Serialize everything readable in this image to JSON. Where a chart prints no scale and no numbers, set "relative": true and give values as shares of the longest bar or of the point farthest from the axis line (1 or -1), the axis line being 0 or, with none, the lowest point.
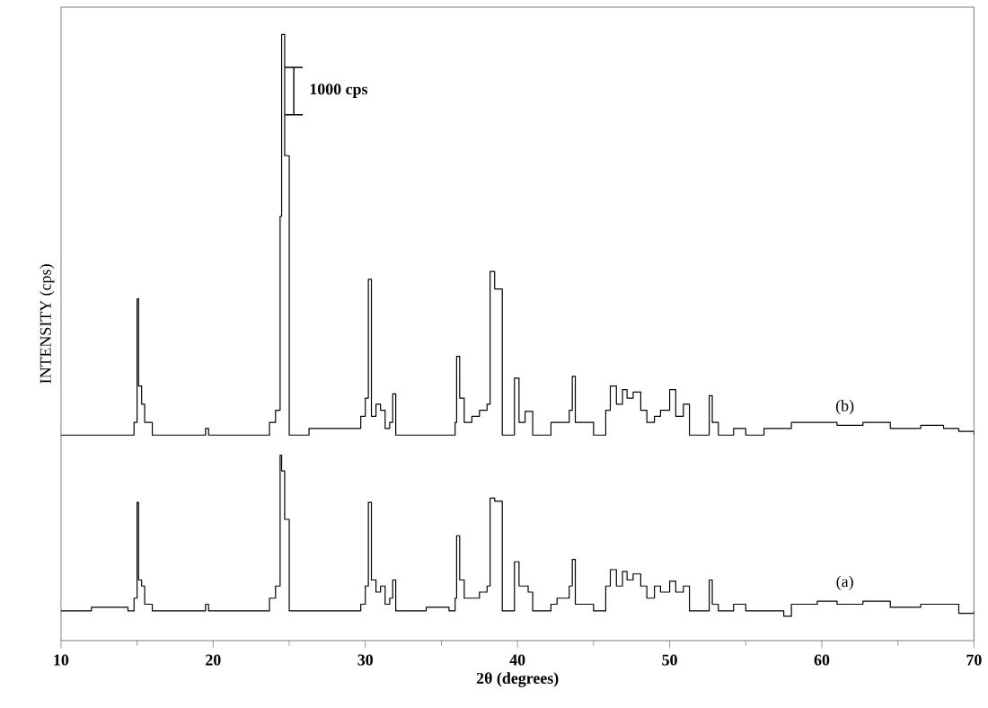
{
  "chart_data": {
    "type": "step",
    "relative": true,
    "xlabel": "2θ (degrees)",
    "ylabel": "INTENSITY (cps)",
    "annotations": [
      "1000 cps"
    ],
    "xlim": [
      10,
      70
    ],
    "xticks": [
      10,
      20,
      30,
      40,
      50,
      60,
      70
    ],
    "series": [
      {
        "name": "(a)",
        "color": "#000000",
        "x": [
          10,
          12,
          14.4,
          14.8,
          15.0,
          15.1,
          15.3,
          15.5,
          16,
          19.5,
          19.7,
          23.4,
          23.7,
          24.1,
          24.4,
          24.5,
          24.7,
          25.0,
          28.8,
          29.7,
          30.0,
          30.2,
          30.4,
          30.7,
          31.0,
          31.3,
          31.6,
          31.8,
          32.0,
          34.0,
          35.5,
          35.9,
          36.0,
          36.2,
          36.5,
          37.0,
          37.5,
          38.0,
          38.2,
          38.5,
          39.0,
          39.8,
          40.1,
          40.7,
          41.0,
          42.2,
          42.6,
          43.4,
          43.6,
          43.8,
          45.0,
          45.8,
          46.1,
          46.5,
          46.9,
          47.2,
          47.6,
          48.1,
          48.5,
          49.0,
          49.4,
          50.0,
          50.4,
          50.9,
          51.3,
          52.6,
          52.8,
          53.2,
          54.2,
          55,
          57.5,
          58.0,
          59.7,
          61.0,
          62.7,
          64.5,
          66.5,
          68.0,
          69.0,
          70
        ],
        "values": [
          0.049,
          0.055,
          0.049,
          0.07,
          0.228,
          0.1,
          0.09,
          0.06,
          0.049,
          0.06,
          0.049,
          0.049,
          0.07,
          0.09,
          0.306,
          0.28,
          0.2,
          0.049,
          0.049,
          0.06,
          0.09,
          0.228,
          0.1,
          0.08,
          0.09,
          0.06,
          0.07,
          0.1,
          0.049,
          0.055,
          0.049,
          0.07,
          0.173,
          0.1,
          0.07,
          0.07,
          0.08,
          0.09,
          0.235,
          0.23,
          0.049,
          0.13,
          0.09,
          0.08,
          0.049,
          0.06,
          0.07,
          0.09,
          0.134,
          0.06,
          0.049,
          0.09,
          0.117,
          0.09,
          0.114,
          0.1,
          0.11,
          0.09,
          0.07,
          0.09,
          0.08,
          0.098,
          0.08,
          0.09,
          0.049,
          0.1,
          0.06,
          0.049,
          0.06,
          0.049,
          0.04,
          0.06,
          0.065,
          0.06,
          0.065,
          0.055,
          0.06,
          0.06,
          0.045,
          0.049
        ]
      },
      {
        "name": "(b)",
        "color": "#000000",
        "x": [
          10,
          14.4,
          14.8,
          15.0,
          15.1,
          15.3,
          15.5,
          16,
          19.5,
          19.7,
          23.4,
          23.7,
          24.1,
          24.4,
          24.5,
          24.7,
          25.0,
          26.3,
          27.2,
          28.8,
          29.7,
          30.0,
          30.2,
          30.4,
          30.7,
          31.0,
          31.3,
          31.6,
          31.8,
          32.0,
          35.5,
          35.9,
          36.0,
          36.2,
          36.5,
          37.0,
          37.5,
          38.0,
          38.2,
          38.5,
          39.0,
          39.8,
          40.1,
          40.5,
          41.0,
          42.2,
          42.5,
          43.4,
          43.6,
          43.8,
          45.0,
          45.8,
          46.1,
          46.5,
          46.9,
          47.2,
          47.6,
          48.1,
          48.5,
          49.0,
          49.4,
          50.0,
          50.4,
          50.9,
          51.3,
          52.6,
          52.8,
          53.2,
          54.2,
          55,
          56.2,
          58.0,
          59.7,
          61.0,
          62.7,
          64.5,
          66.5,
          68.0,
          69.0,
          70
        ],
        "values": [
          0.339,
          0.339,
          0.36,
          0.564,
          0.42,
          0.39,
          0.36,
          0.339,
          0.35,
          0.339,
          0.339,
          0.36,
          0.38,
          0.7,
          1.0,
          0.8,
          0.339,
          0.35,
          0.35,
          0.35,
          0.37,
          0.4,
          0.596,
          0.37,
          0.39,
          0.38,
          0.35,
          0.36,
          0.407,
          0.339,
          0.339,
          0.36,
          0.469,
          0.4,
          0.36,
          0.37,
          0.38,
          0.39,
          0.609,
          0.58,
          0.339,
          0.433,
          0.36,
          0.378,
          0.339,
          0.36,
          0.36,
          0.38,
          0.436,
          0.36,
          0.339,
          0.38,
          0.42,
          0.39,
          0.414,
          0.4,
          0.41,
          0.38,
          0.36,
          0.37,
          0.38,
          0.414,
          0.37,
          0.39,
          0.339,
          0.404,
          0.36,
          0.339,
          0.35,
          0.339,
          0.35,
          0.36,
          0.36,
          0.355,
          0.36,
          0.35,
          0.355,
          0.35,
          0.345,
          0.339
        ]
      }
    ]
  }
}
